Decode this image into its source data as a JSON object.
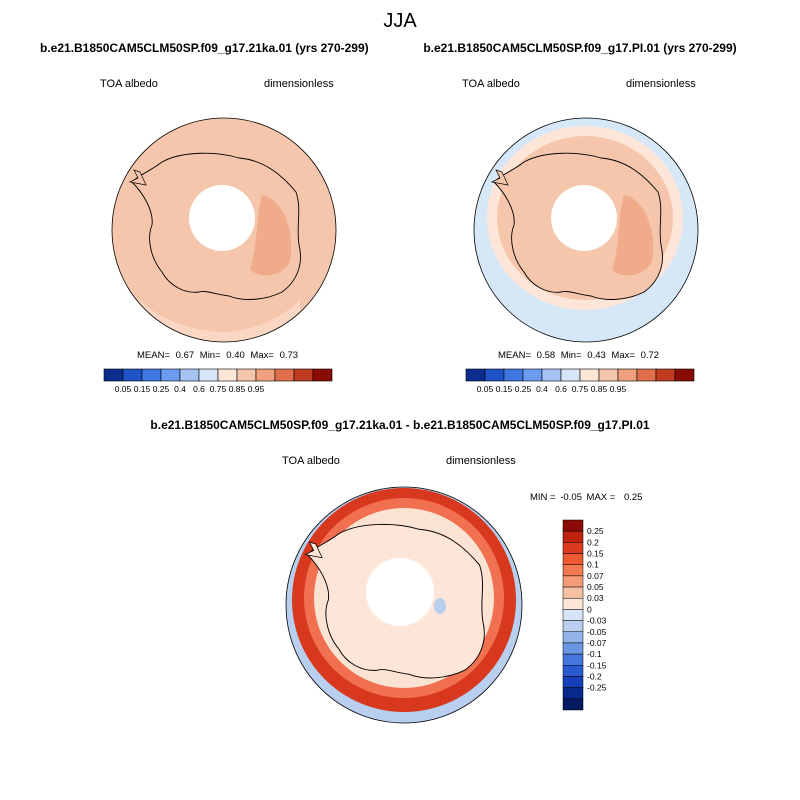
{
  "title": "JJA",
  "colors": {
    "land_base": "#f6c6ac",
    "land_high": "#f0ab8a",
    "ocean_low": "#d6e8f8",
    "mid_light": "#fde6d8",
    "diff_red": "#d8381e",
    "diff_orange": "#f07050",
    "diff_pale": "#fbe3d4",
    "diff_blue": "#b8cff0",
    "coast": "#000000",
    "hole": "#ffffff"
  },
  "panels": [
    {
      "subtitle": "b.e21.B1850CAM5CLM50SP.f09_g17.21ka.01 (yrs 270-299)",
      "left_label": "TOA albedo",
      "right_label": "dimensionless",
      "mean_label": "MEAN=",
      "mean": "0.67",
      "min_label": "Min=",
      "min": "0.40",
      "max_label": "Max=",
      "max": "0.73",
      "colorbar": {
        "colors": [
          "#0b2d8e",
          "#1e54c8",
          "#3f77e0",
          "#6b9cef",
          "#a5c4f3",
          "#d6e6f8",
          "#fde6d8",
          "#f6c6ac",
          "#f0a07e",
          "#e0704c",
          "#c03a20",
          "#8a0a06"
        ],
        "ticks": [
          "0.05",
          "0.15",
          "0.25",
          "0.4",
          "0.6",
          "0.75",
          "0.85",
          "0.95"
        ]
      }
    },
    {
      "subtitle": "b.e21.B1850CAM5CLM50SP.f09_g17.PI.01 (yrs 270-299)",
      "left_label": "TOA albedo",
      "right_label": "dimensionless",
      "mean_label": "MEAN=",
      "mean": "0.58",
      "min_label": "Min=",
      "min": "0.43",
      "max_label": "Max=",
      "max": "0.72",
      "colorbar": {
        "colors": [
          "#0b2d8e",
          "#1e54c8",
          "#3f77e0",
          "#6b9cef",
          "#a5c4f3",
          "#d6e6f8",
          "#fde6d8",
          "#f6c6ac",
          "#f0a07e",
          "#e0704c",
          "#c03a20",
          "#8a0a06"
        ],
        "ticks": [
          "0.05",
          "0.15",
          "0.25",
          "0.4",
          "0.6",
          "0.75",
          "0.85",
          "0.95"
        ]
      }
    }
  ],
  "diff_panel": {
    "subtitle": "b.e21.B1850CAM5CLM50SP.f09_g17.21ka.01 - b.e21.B1850CAM5CLM50SP.f09_g17.PI.01",
    "left_label": "TOA albedo",
    "right_label": "dimensionless",
    "min_label": "MIN =",
    "min": "-0.05",
    "max_label": "MAX =",
    "max": "0.25",
    "colorbar": {
      "colors": [
        "#8a0a06",
        "#c0220e",
        "#dc3a1e",
        "#f05a32",
        "#f27a52",
        "#f49c78",
        "#f8c0a2",
        "#fde6d8",
        "#d6e6f8",
        "#b8cff0",
        "#92b4eb",
        "#6b96e3",
        "#4676dc",
        "#2a5ad0",
        "#143fb8",
        "#08288e",
        "#041a60"
      ],
      "ticks": [
        "0.25",
        "0.2",
        "0.15",
        "0.1",
        "0.07",
        "0.05",
        "0.03",
        "0",
        "-0.03",
        "-0.05",
        "-0.07",
        "-0.1",
        "-0.15",
        "-0.2",
        "-0.25"
      ]
    }
  }
}
